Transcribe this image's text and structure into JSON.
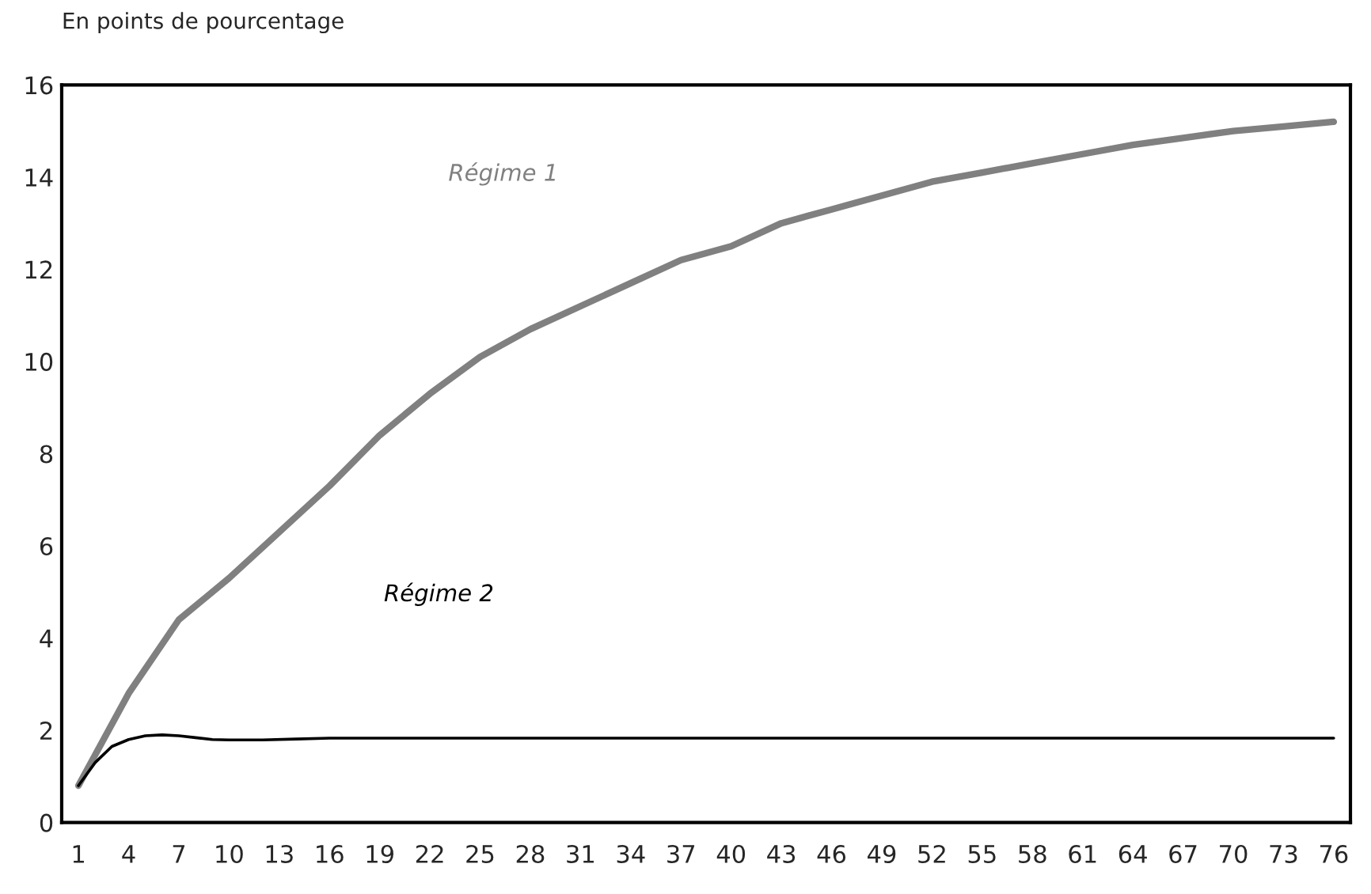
{
  "chart_data": {
    "type": "line",
    "ylabel": "En points de pourcentage",
    "xlim": [
      0,
      77
    ],
    "xticks": [
      1,
      4,
      7,
      10,
      13,
      16,
      19,
      22,
      25,
      28,
      31,
      34,
      37,
      40,
      43,
      46,
      49,
      52,
      55,
      58,
      61,
      64,
      67,
      70,
      73,
      76
    ],
    "ylim": [
      0,
      16
    ],
    "yticks": [
      0,
      2,
      4,
      6,
      8,
      10,
      12,
      14,
      16
    ],
    "grid": false,
    "legend": false,
    "marker": "none",
    "line_style": "solid",
    "series": [
      {
        "name": "Régime 1",
        "color": "#808080",
        "x": [
          1,
          4,
          7,
          10,
          13,
          16,
          19,
          22,
          25,
          28,
          31,
          34,
          37,
          40,
          43,
          46,
          49,
          52,
          55,
          58,
          61,
          64,
          67,
          70,
          73,
          76
        ],
        "values": [
          0.8,
          2.8,
          4.4,
          5.3,
          6.3,
          7.3,
          8.4,
          9.3,
          10.1,
          10.7,
          11.2,
          11.7,
          12.2,
          12.5,
          13.0,
          13.3,
          13.6,
          13.9,
          14.1,
          14.3,
          14.5,
          14.7,
          14.85,
          15.0,
          15.1,
          15.2
        ]
      },
      {
        "name": "Régime 2",
        "color": "#000000",
        "x": [
          1,
          2,
          3,
          4,
          5,
          6,
          7,
          8,
          9,
          10,
          12,
          14,
          16,
          76
        ],
        "values": [
          0.8,
          1.3,
          1.65,
          1.8,
          1.88,
          1.9,
          1.88,
          1.84,
          1.8,
          1.79,
          1.79,
          1.81,
          1.83,
          1.83
        ]
      }
    ]
  }
}
